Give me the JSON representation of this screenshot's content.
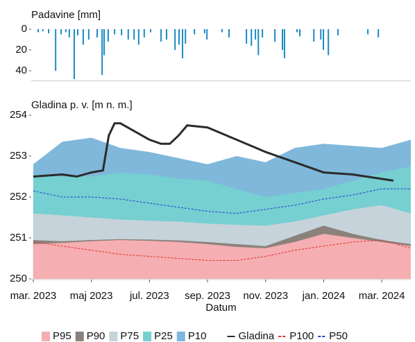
{
  "chart_data": [
    {
      "type": "bar",
      "title": "Padavine [mm]",
      "reversed": true,
      "color": "#1a8ac4",
      "xlim": [
        -0.07,
        13
      ],
      "ylim": [
        0,
        49
      ],
      "yticks": [
        0,
        20,
        40
      ],
      "x": [
        0.17,
        0.33,
        0.53,
        0.77,
        0.96,
        1.12,
        1.24,
        1.41,
        1.53,
        1.72,
        1.91,
        2.2,
        2.37,
        2.44,
        2.58,
        2.8,
        3.04,
        3.27,
        3.47,
        3.63,
        3.82,
        4.04,
        4.4,
        4.59,
        4.88,
        5.02,
        5.14,
        5.24,
        5.55,
        5.9,
        5.98,
        6.5,
        6.74,
        7.34,
        7.51,
        7.65,
        7.75,
        7.89,
        8.32,
        8.58,
        8.65,
        9.08,
        9.18,
        9.66,
        9.9,
        9.99,
        10.16,
        10.49,
        11.52,
        11.88
      ],
      "values": [
        3,
        2,
        4,
        40,
        5,
        3,
        8,
        48,
        6,
        15,
        10,
        8,
        44,
        25,
        12,
        5,
        6,
        10,
        10,
        15,
        8,
        3,
        12,
        10,
        20,
        15,
        28,
        14,
        5,
        4,
        10,
        3,
        8,
        14,
        16,
        10,
        25,
        8,
        12,
        20,
        28,
        3,
        7,
        12,
        10,
        20,
        25,
        6,
        5,
        8
      ]
    },
    {
      "type": "area",
      "title": "Gladina p. v. [m n. m.]",
      "x_label": "Datum",
      "xlim": [
        -0.07,
        13
      ],
      "ylim": [
        250,
        254.4
      ],
      "yticks": [
        250,
        251,
        252,
        253,
        254
      ],
      "xticks": [
        {
          "value": 0,
          "label": "mar. 2023"
        },
        {
          "value": 2,
          "label": "maj 2023"
        },
        {
          "value": 4,
          "label": "jul. 2023"
        },
        {
          "value": 6,
          "label": "sep. 2023"
        },
        {
          "value": 8,
          "label": "nov. 2023"
        },
        {
          "value": 10,
          "label": "jan. 2024"
        },
        {
          "value": 12,
          "label": "mar. 2024"
        }
      ],
      "x": [
        0,
        1,
        2,
        3,
        4,
        5,
        6,
        7,
        8,
        9,
        10,
        11,
        12,
        13
      ],
      "series": [
        {
          "name": "P95",
          "style": "area",
          "color": "#f5aeb1",
          "values": [
            250.85,
            250.88,
            250.92,
            250.95,
            250.93,
            250.9,
            250.85,
            250.78,
            250.75,
            250.9,
            251.1,
            251.0,
            250.9,
            250.8
          ]
        },
        {
          "name": "P90",
          "style": "area",
          "color": "#8c827c",
          "values": [
            250.95,
            250.92,
            250.95,
            250.97,
            250.96,
            250.94,
            250.9,
            250.85,
            250.8,
            251.05,
            251.3,
            251.1,
            250.95,
            250.85
          ]
        },
        {
          "name": "P75",
          "style": "area",
          "color": "#c6d3da",
          "values": [
            251.6,
            251.55,
            251.5,
            251.45,
            251.42,
            251.4,
            251.35,
            251.32,
            251.3,
            251.4,
            251.55,
            251.7,
            251.8,
            251.6
          ]
        },
        {
          "name": "P25",
          "style": "area",
          "color": "#76cfd1",
          "values": [
            252.55,
            252.5,
            252.5,
            252.6,
            252.55,
            252.45,
            252.4,
            252.2,
            252.0,
            252.1,
            252.2,
            252.4,
            252.6,
            252.75
          ]
        },
        {
          "name": "P10",
          "style": "area",
          "color": "#7fb8db",
          "values": [
            252.8,
            253.35,
            253.45,
            253.2,
            253.1,
            252.95,
            252.8,
            253.0,
            252.85,
            253.2,
            253.3,
            253.25,
            253.2,
            253.4
          ]
        },
        {
          "name": "Gladina",
          "style": "line",
          "color": "#2b2b2b",
          "x": [
            0,
            1,
            1.5,
            2,
            2.4,
            2.6,
            2.8,
            3,
            3.5,
            4,
            4.4,
            4.7,
            5,
            5.3,
            6,
            7,
            8,
            9,
            10,
            11,
            12.4
          ],
          "values": [
            252.5,
            252.55,
            252.5,
            252.6,
            252.65,
            253.5,
            253.8,
            253.8,
            253.6,
            253.4,
            253.3,
            253.3,
            253.5,
            253.75,
            253.7,
            253.4,
            253.1,
            252.85,
            252.6,
            252.55,
            252.4
          ]
        },
        {
          "name": "P100",
          "style": "dashed",
          "color": "#e0302a",
          "values": [
            250.9,
            250.8,
            250.7,
            250.6,
            250.55,
            250.5,
            250.45,
            250.45,
            250.55,
            250.7,
            250.8,
            250.9,
            250.95,
            250.75
          ]
        },
        {
          "name": "P50",
          "style": "dashed",
          "color": "#1f3fd0",
          "values": [
            252.15,
            252.0,
            252.0,
            251.95,
            251.85,
            251.75,
            251.65,
            251.6,
            251.7,
            251.8,
            251.95,
            252.05,
            252.2,
            252.2
          ]
        }
      ]
    }
  ]
}
